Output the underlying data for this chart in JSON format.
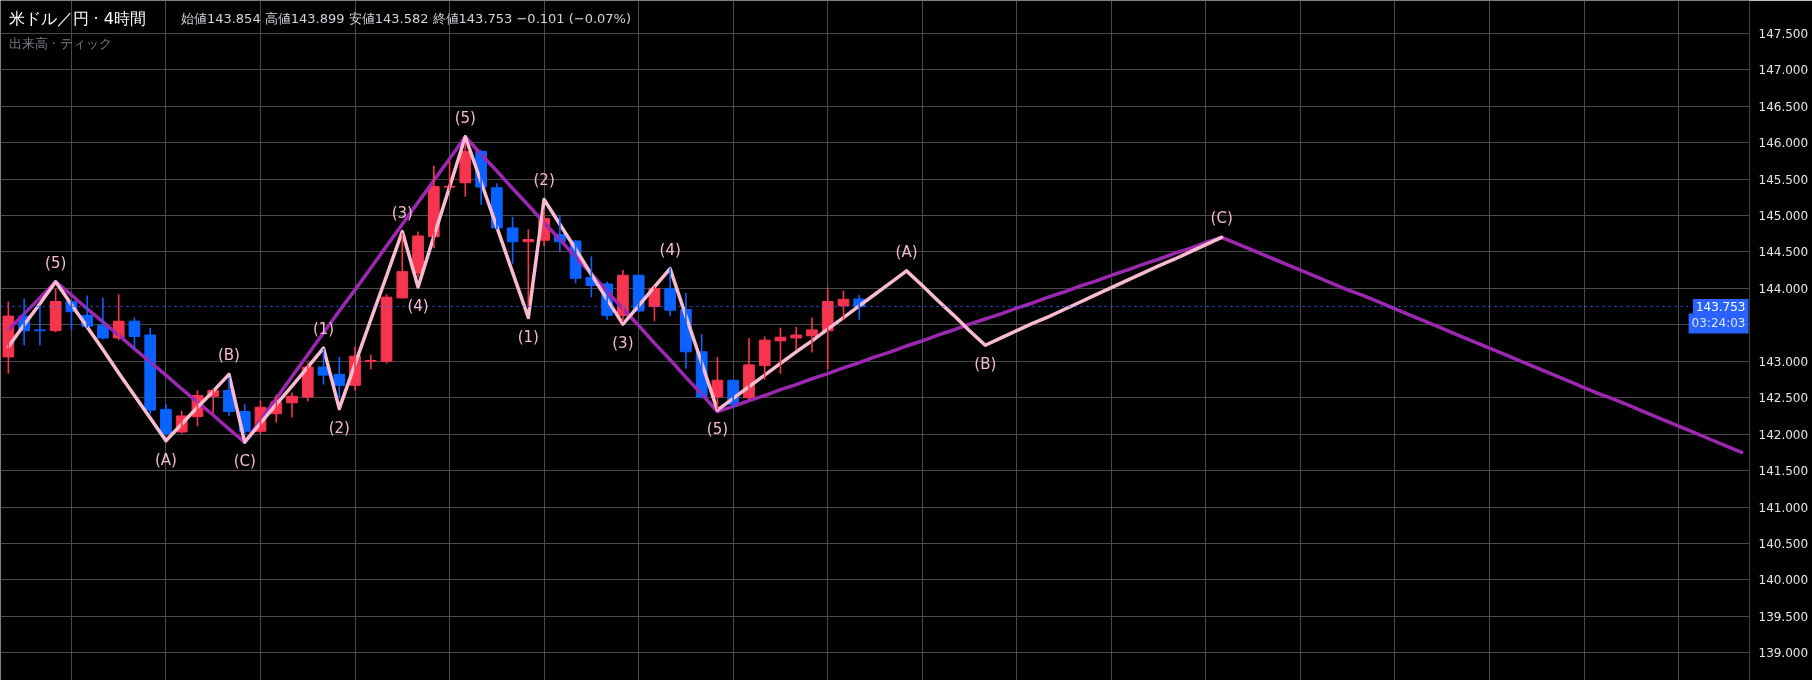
{
  "chart_data": {
    "type": "candlestick",
    "title": "米ドル／円 · 4時間",
    "subtitle": "始値143.854 高値143.899 安値143.582 終値143.753 −0.101 (−0.07%)",
    "categories": [
      null,
      null,
      null,
      null,
      null,
      null,
      null,
      null,
      null,
      null,
      null,
      null,
      null,
      null,
      null,
      null,
      null,
      null,
      null,
      null,
      null,
      null,
      null,
      null,
      null,
      null,
      null,
      null,
      null,
      null,
      null,
      null,
      null,
      null,
      null,
      null,
      null,
      null,
      null,
      null,
      null,
      null,
      null,
      null,
      null,
      null,
      null,
      null,
      null,
      null,
      null,
      null,
      null,
      null,
      null,
      null,
      null,
      null,
      null,
      null,
      null,
      null,
      null,
      null,
      null,
      null,
      null,
      null,
      null,
      null,
      null,
      null,
      null,
      null,
      null,
      null,
      null,
      null,
      null,
      null,
      null,
      null,
      null,
      null,
      null,
      null,
      null,
      null,
      null,
      null,
      null,
      null,
      null,
      null,
      null,
      null,
      null,
      null,
      null,
      null,
      null,
      null,
      null,
      null,
      null,
      null,
      null,
      null,
      null,
      null,
      null
    ],
    "ohlc": [
      [
        143.06,
        143.81,
        142.84,
        143.62
      ],
      [
        143.62,
        143.85,
        143.23,
        143.42
      ],
      [
        143.43,
        143.75,
        143.23,
        143.42
      ],
      [
        143.42,
        143.98,
        143.41,
        143.82
      ],
      [
        143.82,
        143.83,
        143.44,
        143.68
      ],
      [
        143.63,
        143.89,
        143.47,
        143.48
      ],
      [
        143.49,
        143.86,
        143.31,
        143.32
      ],
      [
        143.32,
        143.91,
        143.3,
        143.55
      ],
      [
        143.55,
        143.59,
        143.17,
        143.34
      ],
      [
        143.36,
        143.45,
        142.28,
        142.33
      ],
      [
        142.34,
        142.4,
        141.99,
        142.01
      ],
      [
        142.03,
        142.31,
        142.02,
        142.25
      ],
      [
        142.24,
        142.59,
        142.12,
        142.53
      ],
      [
        142.52,
        142.61,
        142.3,
        142.6
      ],
      [
        142.6,
        142.77,
        142.26,
        142.31
      ],
      [
        142.31,
        142.4,
        142.01,
        142.04
      ],
      [
        142.04,
        142.45,
        142.01,
        142.37
      ],
      [
        142.28,
        142.53,
        142.17,
        142.44
      ],
      [
        142.43,
        142.56,
        142.24,
        142.52
      ],
      [
        142.51,
        142.97,
        142.46,
        142.92
      ],
      [
        142.92,
        143.16,
        142.69,
        142.81
      ],
      [
        142.82,
        143.05,
        142.51,
        142.67
      ],
      [
        142.67,
        143.19,
        142.61,
        143.07
      ],
      [
        143.0,
        143.08,
        142.9,
        143.01
      ],
      [
        143.0,
        143.91,
        142.98,
        143.88
      ],
      [
        143.87,
        144.75,
        143.87,
        144.23
      ],
      [
        144.21,
        144.77,
        144.16,
        144.72
      ],
      [
        144.71,
        145.67,
        144.56,
        145.4
      ],
      [
        145.39,
        145.74,
        145.35,
        145.4
      ],
      [
        145.45,
        145.98,
        145.27,
        145.88
      ],
      [
        145.88,
        145.89,
        145.16,
        145.39
      ],
      [
        145.38,
        145.43,
        144.82,
        144.83
      ],
      [
        144.83,
        144.97,
        144.35,
        144.64
      ],
      [
        144.64,
        144.8,
        143.75,
        144.67
      ],
      [
        144.66,
        145.07,
        144.59,
        144.96
      ],
      [
        144.74,
        145.0,
        144.51,
        144.64
      ],
      [
        144.65,
        144.65,
        144.08,
        144.14
      ],
      [
        144.15,
        144.43,
        143.89,
        144.04
      ],
      [
        144.06,
        144.08,
        143.58,
        143.63
      ],
      [
        143.63,
        144.24,
        143.55,
        144.18
      ],
      [
        144.18,
        144.18,
        143.68,
        143.69
      ],
      [
        143.75,
        144.02,
        143.56,
        144.0
      ],
      [
        144.0,
        144.27,
        143.63,
        143.7
      ],
      [
        143.71,
        143.93,
        142.91,
        143.13
      ],
      [
        143.13,
        143.36,
        142.5,
        142.51
      ],
      [
        142.51,
        143.05,
        142.35,
        142.74
      ],
      [
        142.74,
        142.74,
        142.37,
        142.41
      ],
      [
        142.5,
        143.31,
        142.49,
        142.95
      ],
      [
        142.94,
        143.33,
        142.76,
        143.29
      ],
      [
        143.28,
        143.45,
        142.84,
        143.33
      ],
      [
        143.32,
        143.46,
        143.17,
        143.36
      ],
      [
        143.35,
        143.59,
        143.13,
        143.43
      ],
      [
        143.42,
        144.0,
        142.9,
        143.82
      ],
      [
        143.76,
        143.96,
        143.58,
        143.85
      ],
      [
        143.854,
        143.899,
        143.582,
        143.753
      ],
      null,
      null,
      null,
      null,
      null,
      null,
      null,
      null,
      null,
      null,
      null,
      null,
      null,
      null,
      null,
      null,
      null,
      null,
      null,
      null,
      null,
      null,
      null,
      null,
      null,
      null,
      null,
      null,
      null,
      null,
      null,
      null,
      null,
      null,
      null,
      null,
      null,
      null,
      null,
      null,
      null,
      null,
      null,
      null,
      null,
      null,
      null,
      null,
      null,
      null,
      null,
      null,
      null,
      null,
      null,
      null
    ],
    "colors": [
      "#f7354f",
      "#0a62ff",
      "#0a62ff",
      "#f7354f",
      "#0a62ff",
      "#0a62ff",
      "#0a62ff",
      "#f7354f",
      "#0a62ff",
      "#0a62ff",
      "#0a62ff",
      "#f7354f",
      "#f7354f",
      "#f7354f",
      "#0a62ff",
      "#0a62ff",
      "#f7354f",
      "#f7354f",
      "#f7354f",
      "#f7354f",
      "#0a62ff",
      "#0a62ff",
      "#f7354f",
      "#f7354f",
      "#f7354f",
      "#f7354f",
      "#f7354f",
      "#f7354f",
      "#f7354f",
      "#f7354f",
      "#0a62ff",
      "#0a62ff",
      "#0a62ff",
      "#f7354f",
      "#f7354f",
      "#0a62ff",
      "#0a62ff",
      "#0a62ff",
      "#0a62ff",
      "#f7354f",
      "#0a62ff",
      "#f7354f",
      "#0a62ff",
      "#0a62ff",
      "#0a62ff",
      "#f7354f",
      "#0a62ff",
      "#f7354f",
      "#f7354f",
      "#f7354f",
      "#f7354f",
      "#f7354f",
      "#f7354f",
      "#f7354f",
      "#0a62ff",
      null,
      null,
      null,
      null,
      null,
      null,
      null,
      null,
      null,
      null,
      null,
      null,
      null,
      null,
      null,
      null,
      null,
      null,
      null,
      null,
      null,
      null,
      null,
      null,
      null,
      null,
      null,
      null,
      null,
      null,
      null,
      null,
      null,
      null,
      null,
      null,
      null,
      null,
      null,
      null,
      null,
      null,
      null,
      null,
      null,
      null,
      null,
      null,
      null,
      null,
      null,
      null,
      null,
      null,
      null,
      null
    ],
    "series": [
      {
        "type": "line",
        "color": "#9c27b0",
        "values": [
          143.43,
          143.65,
          143.87,
          144.09,
          143.91,
          143.72,
          143.54,
          143.36,
          143.17,
          142.99,
          142.81,
          142.62,
          142.44,
          142.26,
          142.07,
          141.89,
          142.19,
          142.49,
          142.79,
          143.09,
          143.39,
          143.69,
          143.98,
          144.28,
          144.58,
          144.88,
          145.18,
          145.48,
          145.78,
          146.08,
          145.84,
          145.61,
          145.37,
          145.14,
          144.9,
          144.67,
          144.43,
          144.2,
          143.96,
          143.72,
          143.49,
          143.25,
          143.02,
          142.78,
          142.55,
          142.31,
          142.38,
          142.46,
          142.53,
          142.61,
          142.68,
          142.76,
          142.83,
          142.91,
          142.98,
          143.06,
          143.13,
          143.21,
          143.28,
          143.36,
          143.43,
          143.51,
          143.58,
          143.65,
          143.73,
          143.8,
          143.88,
          143.95,
          144.03,
          144.1,
          144.18,
          144.25,
          144.33,
          144.4,
          144.48,
          144.55,
          144.63,
          144.7,
          144.61,
          144.52,
          144.43,
          144.34,
          144.25,
          144.16,
          144.07,
          143.98,
          143.9,
          143.81,
          143.72,
          143.63,
          143.54,
          143.45,
          143.36,
          143.27,
          143.18,
          143.09,
          143.0,
          142.91,
          142.82,
          142.73,
          142.64,
          142.55,
          142.47,
          142.38,
          142.29,
          142.2,
          142.11,
          142.02,
          141.93,
          141.84,
          141.75
        ]
      },
      {
        "type": "line",
        "color": "#f8bbd0",
        "values": [
          143.2,
          143.5,
          143.79,
          144.09,
          143.78,
          143.47,
          143.16,
          142.84,
          142.53,
          142.22,
          141.91,
          142.14,
          142.37,
          142.59,
          142.82,
          141.89,
          142.15,
          142.41,
          142.66,
          142.92,
          143.18,
          142.35,
          142.96,
          143.57,
          144.17,
          144.78,
          144.02,
          144.71,
          145.39,
          146.08,
          145.46,
          144.84,
          144.22,
          143.6,
          145.22,
          144.88,
          144.54,
          144.19,
          143.85,
          143.51,
          143.76,
          144.02,
          144.27,
          143.62,
          142.98,
          142.33,
          142.49,
          142.65,
          142.81,
          142.97,
          143.13,
          143.28,
          143.44,
          143.6,
          143.76,
          143.92,
          144.08,
          144.24,
          144.04,
          143.83,
          143.63,
          143.42,
          143.22,
          143.32,
          143.42,
          143.52,
          143.61,
          143.71,
          143.81,
          143.91,
          144.01,
          144.11,
          144.21,
          144.31,
          144.4,
          144.5,
          144.6,
          144.7,
          null,
          null,
          null,
          null,
          null,
          null,
          null,
          null,
          null,
          null,
          null,
          null,
          null,
          null,
          null,
          null,
          null,
          null,
          null,
          null,
          null,
          null,
          null,
          null,
          null,
          null,
          null,
          null,
          null,
          null,
          null,
          null,
          null
        ]
      }
    ],
    "ylim": [
      138.62,
      147.95
    ],
    "yticks": [
      {
        "value": 139.0,
        "label": "139.000"
      },
      {
        "value": 139.5,
        "label": "139.500"
      },
      {
        "value": 140.0,
        "label": "140.000"
      },
      {
        "value": 140.5,
        "label": "140.500"
      },
      {
        "value": 141.0,
        "label": "141.000"
      },
      {
        "value": 141.5,
        "label": "141.500"
      },
      {
        "value": 142.0,
        "label": "142.000"
      },
      {
        "value": 142.5,
        "label": "142.500"
      },
      {
        "value": 143.0,
        "label": "143.000"
      },
      {
        "value": 143.5,
        "label": null
      },
      {
        "value": 144.0,
        "label": "144.000"
      },
      {
        "value": 144.5,
        "label": "144.500"
      },
      {
        "value": 145.0,
        "label": "145.000"
      },
      {
        "value": 145.5,
        "label": "145.500"
      },
      {
        "value": 146.0,
        "label": "146.000"
      },
      {
        "value": 146.5,
        "label": "146.500"
      },
      {
        "value": 147.0,
        "label": "147.000"
      },
      {
        "value": 147.5,
        "label": "147.500"
      }
    ],
    "tick_labels": "y",
    "grid": true,
    "ref_lines": [
      {
        "axis": "y",
        "value": 143.753,
        "label": "143.753",
        "color": "#2962ff",
        "line_style": "dotted"
      }
    ],
    "annotations": [
      "出来高 · ティック",
      {
        "text": "(5)",
        "y": 144.09
      },
      {
        "text": "(A)",
        "y": 141.91
      },
      {
        "text": "(B)",
        "y": 142.82
      },
      {
        "text": "(C)",
        "y": 141.89
      },
      {
        "text": "(1)",
        "y": 143.18
      },
      {
        "text": "(2)",
        "y": 142.35
      },
      {
        "text": "(3)",
        "y": 144.78
      },
      {
        "text": "(4)",
        "y": 144.02
      },
      {
        "text": "(5)",
        "y": 146.08
      },
      {
        "text": "(1)",
        "y": 143.6
      },
      {
        "text": "(2)",
        "y": 145.22
      },
      {
        "text": "(3)",
        "y": 143.51
      },
      {
        "text": "(4)",
        "y": 144.27
      },
      {
        "text": "(5)",
        "y": 142.33
      },
      {
        "text": "(A)",
        "y": 144.24
      },
      {
        "text": "(B)",
        "y": 143.22
      },
      {
        "text": "(C)",
        "y": 144.7
      },
      {
        "text": "03:24:03",
        "y": 143.753
      }
    ]
  }
}
